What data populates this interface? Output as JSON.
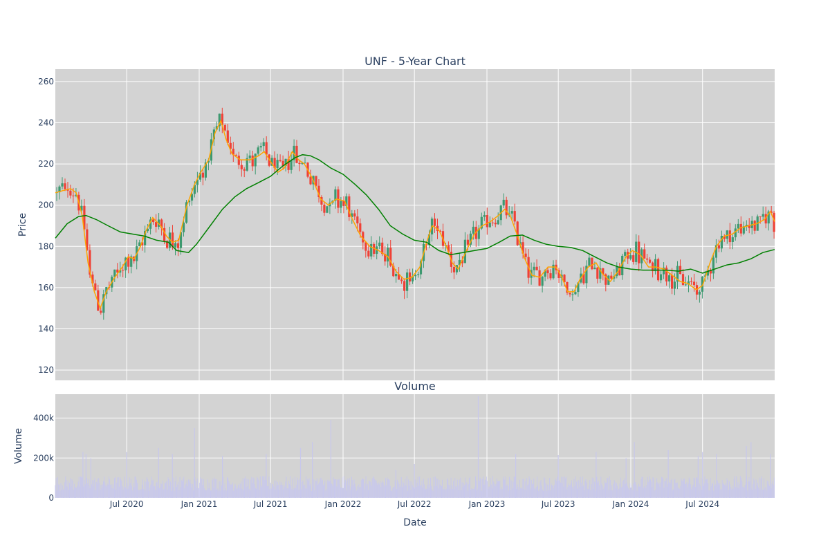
{
  "chart_data": [
    {
      "type": "candlestick",
      "title": "UNF - 5-Year Chart",
      "xlabel": "",
      "ylabel": "Price",
      "ylim": [
        115,
        266
      ],
      "xlim": [
        "2020-01-02",
        "2024-12-31"
      ],
      "yticks": [
        120,
        140,
        160,
        180,
        200,
        220,
        240,
        260
      ],
      "grid": true,
      "colors": {
        "plot_background": "#d3d3d3",
        "grid": "#ffffff",
        "candle_up": "#3d9970",
        "candle_down": "#ef4136",
        "short_ma": "#ffa500",
        "long_ma": "#008000",
        "text": "#2a3f5f"
      },
      "short_ma_points": [
        [
          "2020-01-02",
          206
        ],
        [
          "2020-01-20",
          207
        ],
        [
          "2020-02-10",
          208
        ],
        [
          "2020-02-24",
          206
        ],
        [
          "2020-03-10",
          195
        ],
        [
          "2020-03-25",
          172
        ],
        [
          "2020-04-10",
          158
        ],
        [
          "2020-04-25",
          150
        ],
        [
          "2020-05-10",
          158
        ],
        [
          "2020-06-01",
          165
        ],
        [
          "2020-06-20",
          170
        ],
        [
          "2020-07-05",
          175
        ],
        [
          "2020-07-20",
          174
        ],
        [
          "2020-08-05",
          180
        ],
        [
          "2020-08-20",
          188
        ],
        [
          "2020-09-05",
          194
        ],
        [
          "2020-09-25",
          190
        ],
        [
          "2020-10-10",
          185
        ],
        [
          "2020-10-25",
          182
        ],
        [
          "2020-11-10",
          183
        ],
        [
          "2020-12-01",
          200
        ],
        [
          "2020-12-20",
          210
        ],
        [
          "2021-01-05",
          216
        ],
        [
          "2021-01-25",
          222
        ],
        [
          "2021-02-10",
          235
        ],
        [
          "2021-02-25",
          241
        ],
        [
          "2021-03-10",
          232
        ],
        [
          "2021-03-25",
          225
        ],
        [
          "2021-04-15",
          222
        ],
        [
          "2021-05-10",
          222
        ],
        [
          "2021-06-01",
          224
        ],
        [
          "2021-06-15",
          226
        ],
        [
          "2021-07-05",
          220
        ],
        [
          "2021-07-20",
          216
        ],
        [
          "2021-08-05",
          218
        ],
        [
          "2021-08-25",
          226
        ],
        [
          "2021-09-10",
          222
        ],
        [
          "2021-09-25",
          220
        ],
        [
          "2021-10-15",
          213
        ],
        [
          "2021-11-05",
          203
        ],
        [
          "2021-11-25",
          200
        ],
        [
          "2021-12-15",
          203
        ],
        [
          "2022-01-05",
          202
        ],
        [
          "2022-01-25",
          193
        ],
        [
          "2022-02-15",
          185
        ],
        [
          "2022-03-10",
          180
        ],
        [
          "2022-04-01",
          178
        ],
        [
          "2022-04-25",
          175
        ],
        [
          "2022-05-15",
          168
        ],
        [
          "2022-06-05",
          164
        ],
        [
          "2022-06-25",
          165
        ],
        [
          "2022-07-15",
          170
        ],
        [
          "2022-08-01",
          182
        ],
        [
          "2022-08-15",
          190
        ],
        [
          "2022-09-01",
          188
        ],
        [
          "2022-09-20",
          180
        ],
        [
          "2022-10-05",
          172
        ],
        [
          "2022-10-20",
          169
        ],
        [
          "2022-11-10",
          178
        ],
        [
          "2022-11-30",
          186
        ],
        [
          "2022-12-20",
          190
        ],
        [
          "2023-01-10",
          192
        ],
        [
          "2023-01-30",
          195
        ],
        [
          "2023-02-15",
          198
        ],
        [
          "2023-03-01",
          195
        ],
        [
          "2023-03-20",
          185
        ],
        [
          "2023-04-05",
          175
        ],
        [
          "2023-04-25",
          166
        ],
        [
          "2023-05-15",
          165
        ],
        [
          "2023-06-05",
          170
        ],
        [
          "2023-06-25",
          170
        ],
        [
          "2023-07-10",
          165
        ],
        [
          "2023-07-25",
          158
        ],
        [
          "2023-08-10",
          158
        ],
        [
          "2023-08-25",
          164
        ],
        [
          "2023-09-15",
          170
        ],
        [
          "2023-10-05",
          172
        ],
        [
          "2023-10-20",
          167
        ],
        [
          "2023-11-10",
          163
        ],
        [
          "2023-11-30",
          168
        ],
        [
          "2023-12-20",
          175
        ],
        [
          "2024-01-05",
          178
        ],
        [
          "2024-01-25",
          176
        ],
        [
          "2024-02-15",
          170
        ],
        [
          "2024-03-05",
          170
        ],
        [
          "2024-03-25",
          169
        ],
        [
          "2024-04-15",
          166
        ],
        [
          "2024-05-05",
          163
        ],
        [
          "2024-05-25",
          162
        ],
        [
          "2024-06-15",
          159
        ],
        [
          "2024-07-01",
          161
        ],
        [
          "2024-07-20",
          172
        ],
        [
          "2024-08-05",
          180
        ],
        [
          "2024-08-25",
          185
        ],
        [
          "2024-09-15",
          186
        ],
        [
          "2024-10-05",
          189
        ],
        [
          "2024-10-25",
          190
        ],
        [
          "2024-11-15",
          191
        ],
        [
          "2024-12-05",
          193
        ],
        [
          "2024-12-20",
          197
        ],
        [
          "2024-12-31",
          192
        ]
      ],
      "long_ma_points": [
        [
          "2020-01-02",
          184
        ],
        [
          "2020-02-01",
          191
        ],
        [
          "2020-03-01",
          194.5
        ],
        [
          "2020-03-20",
          195
        ],
        [
          "2020-04-15",
          193
        ],
        [
          "2020-05-15",
          190
        ],
        [
          "2020-06-15",
          187
        ],
        [
          "2020-07-15",
          186
        ],
        [
          "2020-08-15",
          185
        ],
        [
          "2020-09-15",
          183
        ],
        [
          "2020-10-15",
          182
        ],
        [
          "2020-11-05",
          178
        ],
        [
          "2020-12-05",
          177
        ],
        [
          "2020-12-25",
          181
        ],
        [
          "2021-01-25",
          189
        ],
        [
          "2021-03-01",
          198
        ],
        [
          "2021-04-01",
          204
        ],
        [
          "2021-05-01",
          208
        ],
        [
          "2021-06-01",
          211
        ],
        [
          "2021-07-01",
          214
        ],
        [
          "2021-08-01",
          219
        ],
        [
          "2021-09-01",
          223
        ],
        [
          "2021-09-20",
          224.5
        ],
        [
          "2021-10-10",
          224
        ],
        [
          "2021-11-01",
          222
        ],
        [
          "2021-12-01",
          218
        ],
        [
          "2022-01-01",
          215
        ],
        [
          "2022-02-01",
          210
        ],
        [
          "2022-03-01",
          205
        ],
        [
          "2022-04-01",
          198
        ],
        [
          "2022-05-01",
          190
        ],
        [
          "2022-06-01",
          186
        ],
        [
          "2022-07-01",
          183
        ],
        [
          "2022-08-01",
          182
        ],
        [
          "2022-09-01",
          178
        ],
        [
          "2022-10-01",
          176
        ],
        [
          "2022-11-01",
          177
        ],
        [
          "2022-12-01",
          178
        ],
        [
          "2023-01-01",
          179
        ],
        [
          "2023-02-01",
          182
        ],
        [
          "2023-03-01",
          185
        ],
        [
          "2023-04-01",
          185.5
        ],
        [
          "2023-05-01",
          183
        ],
        [
          "2023-06-01",
          181
        ],
        [
          "2023-07-01",
          180
        ],
        [
          "2023-08-01",
          179.5
        ],
        [
          "2023-09-01",
          178
        ],
        [
          "2023-10-01",
          175
        ],
        [
          "2023-11-01",
          172
        ],
        [
          "2023-12-01",
          170
        ],
        [
          "2024-01-01",
          169
        ],
        [
          "2024-02-01",
          168.5
        ],
        [
          "2024-03-01",
          168.5
        ],
        [
          "2024-04-01",
          168.5
        ],
        [
          "2024-05-01",
          168
        ],
        [
          "2024-06-01",
          169
        ],
        [
          "2024-07-01",
          167
        ],
        [
          "2024-08-01",
          169
        ],
        [
          "2024-09-01",
          171
        ],
        [
          "2024-10-01",
          172
        ],
        [
          "2024-11-01",
          174
        ],
        [
          "2024-12-01",
          177
        ],
        [
          "2024-12-31",
          178.5
        ]
      ]
    },
    {
      "type": "bar",
      "title": "Volume",
      "xlabel": "Date",
      "ylabel": "Volume",
      "ylim": [
        0,
        520000
      ],
      "yticks": [
        {
          "value": 0,
          "label": "0"
        },
        {
          "value": 200000,
          "label": "200k"
        },
        {
          "value": 400000,
          "label": "400k"
        }
      ],
      "xticks": [
        {
          "date": "2020-07-01",
          "label": "Jul 2020"
        },
        {
          "date": "2021-01-01",
          "label": "Jan 2021"
        },
        {
          "date": "2021-07-01",
          "label": "Jul 2021"
        },
        {
          "date": "2022-01-01",
          "label": "Jan 2022"
        },
        {
          "date": "2022-07-01",
          "label": "Jul 2022"
        },
        {
          "date": "2023-01-01",
          "label": "Jan 2023"
        },
        {
          "date": "2023-07-01",
          "label": "Jul 2023"
        },
        {
          "date": "2024-01-01",
          "label": "Jan 2024"
        },
        {
          "date": "2024-07-01",
          "label": "Jul 2024"
        }
      ],
      "colors": {
        "bar": "#c8c8ec",
        "plot_background": "#d3d3d3",
        "grid": "#ffffff"
      },
      "volume_spikes": [
        [
          "2020-03-12",
          230000
        ],
        [
          "2020-03-20",
          220000
        ],
        [
          "2020-04-01",
          200000
        ],
        [
          "2020-07-01",
          230000
        ],
        [
          "2020-09-20",
          250000
        ],
        [
          "2020-10-25",
          220000
        ],
        [
          "2020-12-20",
          350000
        ],
        [
          "2021-03-01",
          210000
        ],
        [
          "2021-06-20",
          220000
        ],
        [
          "2021-09-15",
          250000
        ],
        [
          "2021-10-15",
          280000
        ],
        [
          "2021-12-01",
          390000
        ],
        [
          "2022-05-15",
          140000
        ],
        [
          "2022-07-01",
          170000
        ],
        [
          "2022-12-10",
          510000
        ],
        [
          "2023-03-15",
          220000
        ],
        [
          "2023-07-01",
          215000
        ],
        [
          "2023-10-05",
          230000
        ],
        [
          "2023-12-20",
          200000
        ],
        [
          "2024-01-10",
          280000
        ],
        [
          "2024-04-05",
          240000
        ],
        [
          "2024-06-20",
          210000
        ],
        [
          "2024-07-01",
          230000
        ],
        [
          "2024-08-05",
          220000
        ],
        [
          "2024-10-20",
          260000
        ],
        [
          "2024-11-01",
          280000
        ],
        [
          "2024-12-20",
          220000
        ]
      ]
    }
  ]
}
